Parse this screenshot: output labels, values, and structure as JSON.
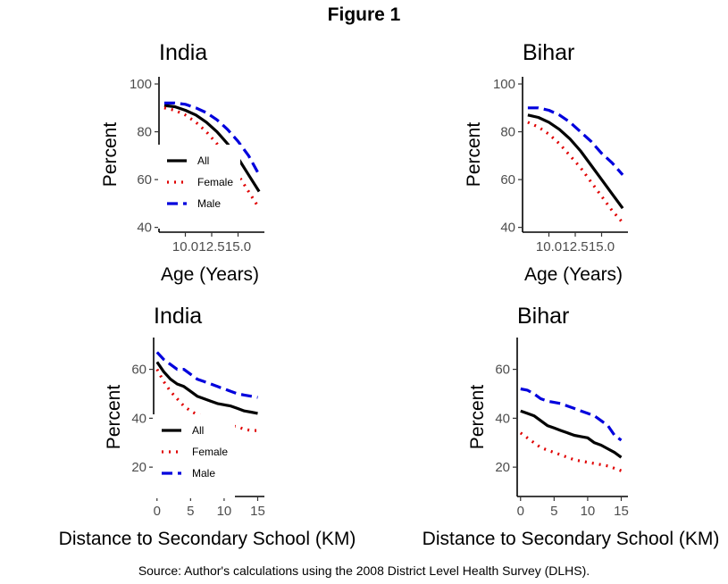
{
  "figure_title": "Figure 1",
  "source_note": "Source: Author's calculations using the 2008 District Level Health Survey (DLHS).",
  "chart_data": [
    {
      "type": "line",
      "title": "India",
      "xlabel": "Age (Years)",
      "ylabel": "Percent",
      "xlim": [
        7.5,
        17.5
      ],
      "ylim": [
        38,
        103
      ],
      "xticks": [
        10,
        12.5,
        15
      ],
      "xtick_labels": [
        "10.0",
        "12.5",
        "15.0"
      ],
      "yticks": [
        40,
        60,
        80,
        100
      ],
      "legend": "bottom-left",
      "grid": false,
      "series": [
        {
          "name": "All",
          "color": "#000000",
          "dash": "solid",
          "x": [
            8,
            9,
            10,
            11,
            12,
            13,
            14,
            15,
            16,
            17
          ],
          "y": [
            91,
            90.5,
            89,
            87,
            84,
            80,
            75,
            69,
            62,
            55
          ]
        },
        {
          "name": "Female",
          "color": "#e00000",
          "dash": "dotted",
          "x": [
            8,
            9,
            10,
            11,
            12,
            13,
            14,
            15,
            16,
            17
          ],
          "y": [
            90,
            89,
            87,
            84,
            80,
            75,
            69,
            62,
            55,
            48
          ]
        },
        {
          "name": "Male",
          "color": "#0000dd",
          "dash": "dashed",
          "x": [
            8,
            9,
            10,
            11,
            12,
            13,
            14,
            15,
            16,
            17
          ],
          "y": [
            92,
            92,
            91.5,
            90,
            88,
            85,
            81,
            76,
            70,
            62
          ]
        }
      ]
    },
    {
      "type": "line",
      "title": "Bihar",
      "xlabel": "Age (Years)",
      "ylabel": "Percent",
      "xlim": [
        7.5,
        17.5
      ],
      "ylim": [
        38,
        103
      ],
      "xticks": [
        10,
        12.5,
        15
      ],
      "xtick_labels": [
        "10.0",
        "12.5",
        "15.0"
      ],
      "yticks": [
        40,
        60,
        80,
        100
      ],
      "legend": "none",
      "grid": false,
      "series": [
        {
          "name": "All",
          "color": "#000000",
          "dash": "solid",
          "x": [
            8,
            9,
            10,
            11,
            12,
            13,
            14,
            15,
            16,
            17
          ],
          "y": [
            87,
            86,
            84,
            81,
            77,
            72,
            66,
            60,
            54,
            48
          ]
        },
        {
          "name": "Female",
          "color": "#e00000",
          "dash": "dotted",
          "x": [
            8,
            9,
            10,
            11,
            12,
            13,
            14,
            15,
            16,
            17
          ],
          "y": [
            84,
            82,
            79,
            75,
            70,
            65,
            59,
            53,
            47,
            42
          ]
        },
        {
          "name": "Male",
          "color": "#0000dd",
          "dash": "dashed",
          "x": [
            8,
            9,
            10,
            11,
            12,
            13,
            14,
            15,
            16,
            17
          ],
          "y": [
            90,
            90,
            89,
            87,
            84,
            80,
            76,
            71,
            67,
            62
          ]
        }
      ]
    },
    {
      "type": "line",
      "title": "India",
      "xlabel": "Distance to Secondary School (KM)",
      "ylabel": "Percent",
      "xlim": [
        -0.5,
        16
      ],
      "ylim": [
        8,
        73
      ],
      "xticks": [
        0,
        5,
        10,
        15
      ],
      "xtick_labels": [
        "0",
        "5",
        "10",
        "15"
      ],
      "yticks": [
        20,
        40,
        60
      ],
      "legend": "bottom-left",
      "grid": false,
      "series": [
        {
          "name": "All",
          "color": "#000000",
          "dash": "solid",
          "x": [
            0,
            1,
            2,
            3,
            4,
            5,
            6,
            7,
            8,
            9,
            10,
            11,
            12,
            13,
            14,
            15
          ],
          "y": [
            63,
            59,
            56,
            54,
            53,
            51,
            49,
            48,
            47,
            46,
            45.5,
            45,
            44,
            43,
            42.5,
            42
          ]
        },
        {
          "name": "Female",
          "color": "#e00000",
          "dash": "dotted",
          "x": [
            0,
            1,
            2,
            3,
            4,
            5,
            6,
            7,
            8,
            9,
            10,
            11,
            12,
            13,
            14,
            15
          ],
          "y": [
            60,
            55,
            51,
            48,
            45,
            43,
            41.5,
            40.5,
            39.5,
            38.5,
            37.5,
            37,
            36.5,
            35.5,
            35,
            35
          ]
        },
        {
          "name": "Male",
          "color": "#0000dd",
          "dash": "dashed",
          "x": [
            0,
            1,
            2,
            3,
            4,
            5,
            6,
            7,
            8,
            9,
            10,
            11,
            12,
            13,
            14,
            15
          ],
          "y": [
            67,
            64,
            62,
            60,
            60,
            58,
            56,
            55,
            54,
            53,
            52,
            51,
            50,
            49.5,
            49,
            48.5
          ]
        }
      ]
    },
    {
      "type": "line",
      "title": "Bihar",
      "xlabel": "Distance to Secondary School (KM)",
      "ylabel": "Percent",
      "xlim": [
        -0.5,
        16
      ],
      "ylim": [
        8,
        73
      ],
      "xticks": [
        0,
        5,
        10,
        15
      ],
      "xtick_labels": [
        "0",
        "5",
        "10",
        "15"
      ],
      "yticks": [
        20,
        40,
        60
      ],
      "legend": "none",
      "grid": false,
      "series": [
        {
          "name": "All",
          "color": "#000000",
          "dash": "solid",
          "x": [
            0,
            1,
            2,
            3,
            4,
            5,
            6,
            7,
            8,
            9,
            10,
            11,
            12,
            13,
            14,
            15
          ],
          "y": [
            43,
            42,
            41,
            39,
            37,
            36,
            35,
            34,
            33,
            32.5,
            32,
            30,
            29,
            27.5,
            26,
            24
          ]
        },
        {
          "name": "Female",
          "color": "#e00000",
          "dash": "dotted",
          "x": [
            0,
            1,
            2,
            3,
            4,
            5,
            6,
            7,
            8,
            9,
            10,
            11,
            12,
            13,
            14,
            15
          ],
          "y": [
            34,
            32,
            30,
            28,
            27,
            26,
            25,
            24,
            23,
            22.5,
            22,
            21.5,
            21,
            20.5,
            19.5,
            18.5
          ]
        },
        {
          "name": "Male",
          "color": "#0000dd",
          "dash": "dashed",
          "x": [
            0,
            1,
            2,
            3,
            4,
            5,
            6,
            7,
            8,
            9,
            10,
            11,
            12,
            13,
            14,
            15
          ],
          "y": [
            52,
            51.5,
            50,
            48,
            47,
            46.5,
            46,
            45,
            44,
            43,
            42,
            41,
            39,
            37,
            33,
            31
          ]
        }
      ]
    }
  ]
}
